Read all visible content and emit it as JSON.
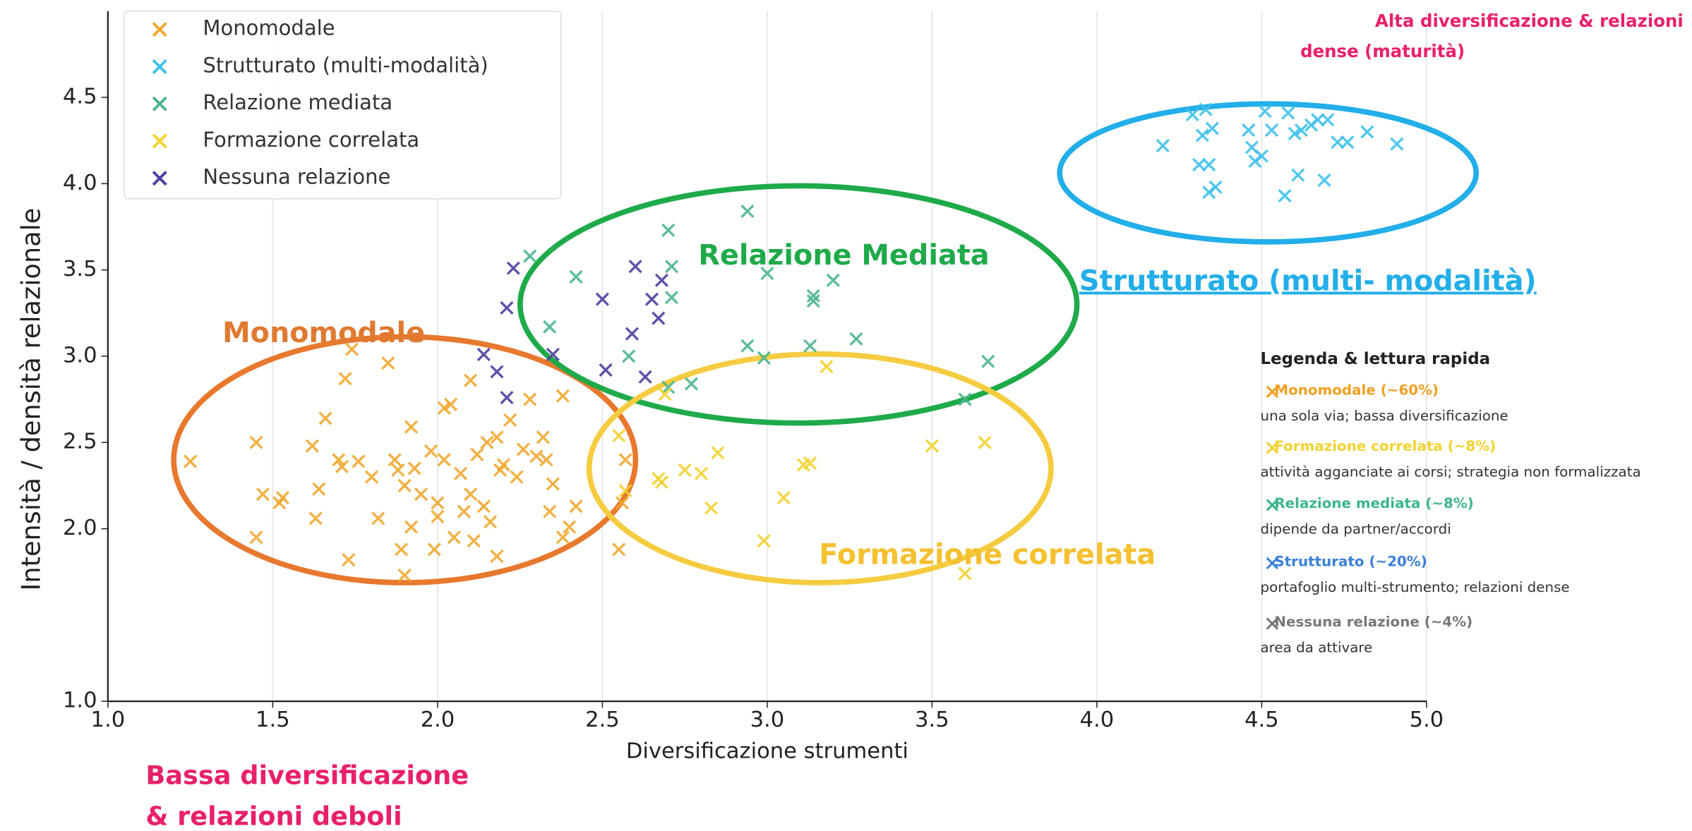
{
  "chart_data": {
    "type": "scatter",
    "x_label": "Diversificazione strumenti",
    "y_label": "Intensità / densità relazionale",
    "xlim": [
      1.0,
      5.0
    ],
    "ylim": [
      1.0,
      5.0
    ],
    "xticks": [
      {
        "value": 1.0,
        "label": "1.0"
      },
      1.5,
      {
        "value": 2.0,
        "label": "2.0"
      },
      2.5,
      {
        "value": 3.0,
        "label": "3.0"
      },
      3.5,
      {
        "value": 4.0,
        "label": "4.0"
      },
      4.5,
      {
        "value": 5.0,
        "label": "5.0"
      }
    ],
    "yticks": [
      {
        "value": 1.0,
        "label": "1.0"
      },
      {
        "value": 2.0,
        "label": "2.0"
      },
      2.5,
      {
        "value": 3.0,
        "label": "3.0"
      },
      3.5,
      {
        "value": 4.0,
        "label": "4.0"
      },
      4.5
    ],
    "grid": true,
    "legend": "upper left",
    "series": [
      {
        "name": "Monomodale",
        "color": "#f0a830",
        "x": [
          1.25,
          1.45,
          1.47,
          1.52,
          1.53,
          1.45,
          1.62,
          1.63,
          1.64,
          1.66,
          1.7,
          1.71,
          1.72,
          1.74,
          1.73,
          1.76,
          1.8,
          1.82,
          1.85,
          1.87,
          1.88,
          1.89,
          1.9,
          1.9,
          1.92,
          1.92,
          1.93,
          1.95,
          1.98,
          1.99,
          2.0,
          2.0,
          2.02,
          2.02,
          2.04,
          2.05,
          2.07,
          2.08,
          2.1,
          2.1,
          2.11,
          2.12,
          2.14,
          2.15,
          2.16,
          2.18,
          2.18,
          2.19,
          2.2,
          2.22,
          2.24,
          2.26,
          2.28,
          2.3,
          2.32,
          2.33,
          2.34,
          2.35,
          2.38,
          2.38,
          2.4,
          2.42,
          2.55,
          2.57,
          2.56
        ],
        "values": [
          2.39,
          2.5,
          2.2,
          2.15,
          2.18,
          1.95,
          2.48,
          2.06,
          2.23,
          2.64,
          2.4,
          2.36,
          2.87,
          3.04,
          1.82,
          2.39,
          2.3,
          2.06,
          2.96,
          2.4,
          2.34,
          1.88,
          1.73,
          2.25,
          2.59,
          2.01,
          2.35,
          2.2,
          2.45,
          1.88,
          2.15,
          2.07,
          2.4,
          2.7,
          2.72,
          1.95,
          2.32,
          2.1,
          2.86,
          2.2,
          1.93,
          2.43,
          2.13,
          2.5,
          2.04,
          2.53,
          1.84,
          2.34,
          2.37,
          2.63,
          2.3,
          2.46,
          2.75,
          2.42,
          2.53,
          2.4,
          2.1,
          2.26,
          2.77,
          1.95,
          2.01,
          2.13,
          1.88,
          2.4,
          2.15
        ]
      },
      {
        "name": "Strutturato (multi-modalità)",
        "color": "#3ec1ea",
        "x": [
          4.2,
          4.29,
          4.31,
          4.32,
          4.33,
          4.34,
          4.34,
          4.35,
          4.36,
          4.46,
          4.47,
          4.48,
          4.5,
          4.51,
          4.53,
          4.57,
          4.58,
          4.6,
          4.61,
          4.62,
          4.65,
          4.67,
          4.69,
          4.7,
          4.73,
          4.76,
          4.82,
          4.91
        ],
        "values": [
          4.22,
          4.4,
          4.11,
          4.28,
          4.43,
          4.11,
          3.95,
          4.32,
          3.98,
          4.31,
          4.21,
          4.13,
          4.16,
          4.42,
          4.31,
          3.93,
          4.41,
          4.29,
          4.05,
          4.31,
          4.34,
          4.37,
          4.02,
          4.37,
          4.24,
          4.24,
          4.3,
          4.23
        ]
      },
      {
        "name": "Relazione mediata",
        "color": "#4cb58f",
        "x": [
          2.28,
          2.34,
          2.42,
          2.58,
          2.7,
          2.71,
          2.71,
          2.77,
          2.7,
          2.94,
          2.94,
          2.99,
          3.0,
          3.13,
          3.14,
          3.14,
          3.2,
          3.27,
          3.6,
          3.67
        ],
        "values": [
          3.58,
          3.17,
          3.46,
          3.0,
          3.73,
          3.34,
          3.52,
          2.84,
          2.82,
          3.84,
          3.06,
          2.99,
          3.48,
          3.06,
          3.35,
          3.32,
          3.44,
          3.1,
          2.75,
          2.97
        ]
      },
      {
        "name": "Formazione correlata",
        "color": "#f2d230",
        "x": [
          2.55,
          2.57,
          2.67,
          2.68,
          2.69,
          2.75,
          2.8,
          2.83,
          2.85,
          2.99,
          3.05,
          3.11,
          3.13,
          3.18,
          3.5,
          3.6,
          3.66
        ],
        "values": [
          2.54,
          2.22,
          2.29,
          2.27,
          2.78,
          2.34,
          2.32,
          2.12,
          2.44,
          1.93,
          2.18,
          2.37,
          2.38,
          2.94,
          2.48,
          1.74,
          2.5
        ]
      },
      {
        "name": "Nessuna relazione",
        "color": "#4a3fa0",
        "x": [
          2.14,
          2.18,
          2.21,
          2.21,
          2.23,
          2.35,
          2.5,
          2.51,
          2.59,
          2.6,
          2.63,
          2.65,
          2.67,
          2.68
        ],
        "values": [
          3.01,
          2.91,
          2.76,
          3.28,
          3.51,
          3.01,
          3.33,
          2.92,
          3.13,
          3.52,
          2.88,
          3.33,
          3.22,
          3.44
        ]
      }
    ],
    "annotations": [
      "Monomodale",
      "Relazione Mediata",
      "Strutturato (multi- modalità)",
      "Formazione correlata",
      "Alta diversificazione & relazioni",
      "dense (maturità)",
      "Bassa diversificazione",
      "& relazioni deboli"
    ],
    "notes_title": "Legenda & lettura rapida",
    "notes": [
      {
        "label": "Monomodale (~60%)",
        "description": "una sola via; bassa diversificazione",
        "color": "#f0a020"
      },
      {
        "label": "Formazione correlata (~8%)",
        "description": "attività agganciate ai corsi; strategia non formalizzata",
        "color": "#f2d230"
      },
      {
        "label": "Relazione mediata (~8%)",
        "description": "dipende da partner/accordi",
        "color": "#3bb58a"
      },
      {
        "label": "Strutturato (~20%)",
        "description": "portafoglio multi-strumento; relazioni dense",
        "color": "#3a7fd8"
      },
      {
        "label": "Nessuna relazione (~4%)",
        "description": "area da attivare",
        "color": "#777777"
      }
    ]
  }
}
